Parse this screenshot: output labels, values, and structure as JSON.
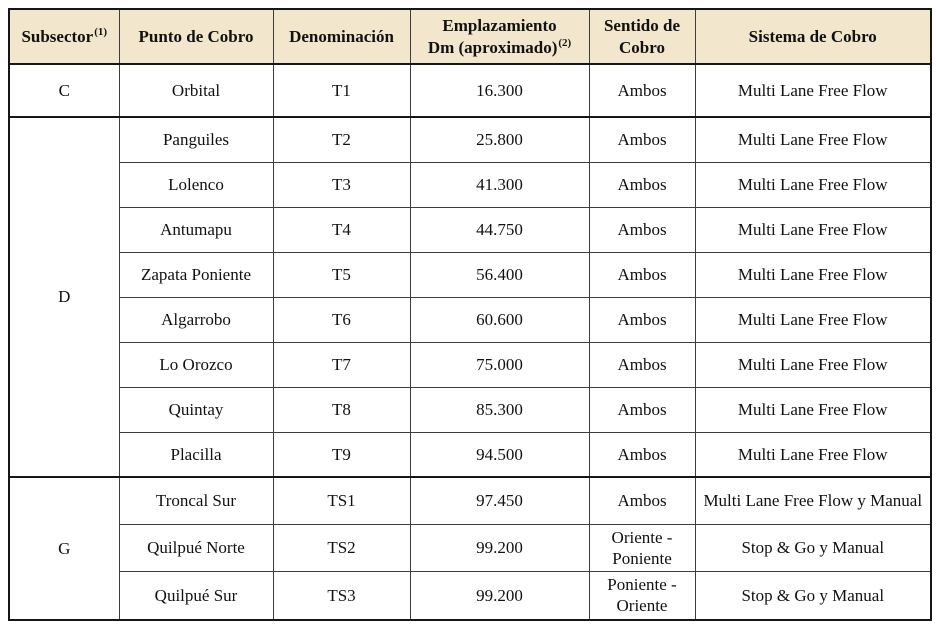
{
  "colors": {
    "header_bg": "#f2e7cc",
    "grid_line": "#3d3d3d",
    "frame_line": "#161616"
  },
  "table": {
    "headers": [
      {
        "line1": "Subsector",
        "sup": "(1)"
      },
      {
        "line1": "Punto de Cobro"
      },
      {
        "line1": "Denominación"
      },
      {
        "line1": "Emplazamiento",
        "line2": "Dm (aproximado)",
        "sup": "(2)"
      },
      {
        "line1": "Sentido de",
        "line2": "Cobro"
      },
      {
        "line1": "Sistema de Cobro"
      }
    ],
    "groups": [
      {
        "subsector": "C",
        "rows": [
          {
            "punto": "Orbital",
            "denominacion": "T1",
            "dm": "16.300",
            "sentido": "Ambos",
            "sistema": "Multi Lane Free Flow"
          }
        ]
      },
      {
        "subsector": "D",
        "rows": [
          {
            "punto": "Panguiles",
            "denominacion": "T2",
            "dm": "25.800",
            "sentido": "Ambos",
            "sistema": "Multi Lane Free Flow"
          },
          {
            "punto": "Lolenco",
            "denominacion": "T3",
            "dm": "41.300",
            "sentido": "Ambos",
            "sistema": "Multi Lane Free Flow"
          },
          {
            "punto": "Antumapu",
            "denominacion": "T4",
            "dm": "44.750",
            "sentido": "Ambos",
            "sistema": "Multi Lane Free Flow"
          },
          {
            "punto": "Zapata Poniente",
            "denominacion": "T5",
            "dm": "56.400",
            "sentido": "Ambos",
            "sistema": "Multi Lane Free Flow"
          },
          {
            "punto": "Algarrobo",
            "denominacion": "T6",
            "dm": "60.600",
            "sentido": "Ambos",
            "sistema": "Multi Lane Free Flow"
          },
          {
            "punto": "Lo Orozco",
            "denominacion": "T7",
            "dm": "75.000",
            "sentido": "Ambos",
            "sistema": "Multi Lane Free Flow"
          },
          {
            "punto": "Quintay",
            "denominacion": "T8",
            "dm": "85.300",
            "sentido": "Ambos",
            "sistema": "Multi Lane Free Flow"
          },
          {
            "punto": "Placilla",
            "denominacion": "T9",
            "dm": "94.500",
            "sentido": "Ambos",
            "sistema": "Multi Lane Free Flow"
          }
        ]
      },
      {
        "subsector": "G",
        "rows": [
          {
            "punto": "Troncal Sur",
            "denominacion": "TS1",
            "dm": "97.450",
            "sentido": "Ambos",
            "sistema": "Multi Lane Free Flow y Manual"
          },
          {
            "punto": "Quilpué Norte",
            "denominacion": "TS2",
            "dm": "99.200",
            "sentido": "Oriente - Poniente",
            "sistema": "Stop & Go y Manual"
          },
          {
            "punto": "Quilpué Sur",
            "denominacion": "TS3",
            "dm": "99.200",
            "sentido": "Poniente - Oriente",
            "sistema": "Stop & Go y Manual"
          }
        ]
      }
    ]
  }
}
